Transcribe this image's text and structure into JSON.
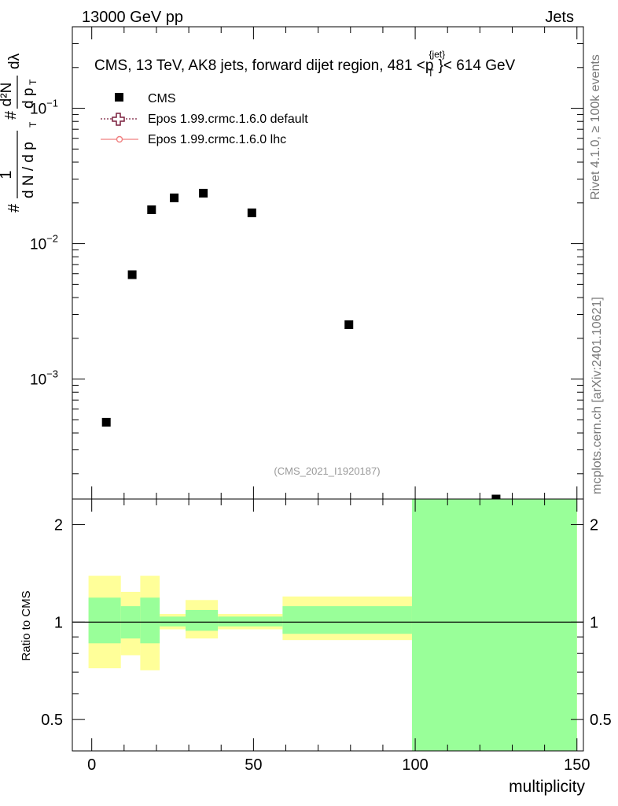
{
  "header": {
    "energy_label": "13000 GeV pp",
    "category_label": "Jets"
  },
  "side_labels": {
    "rivet": "Rivet 4.1.0, ≥ 100k events",
    "mcplots": "mcplots.cern.ch [arXiv:2401.10621]"
  },
  "chart_data": [
    {
      "type": "scatter",
      "title": "CMS, 13 TeV, AK8 jets, forward dijet region, 481 <p",
      "title_superscript": "{jet}",
      "title_subscript": "T",
      "title_tail": "}< 614 GeV",
      "analysis_id": "(CMS_2021_I1920187)",
      "ylabel": {
        "prefix": "#",
        "frac_numerator": "1",
        "frac_denominator": "d N / d p",
        "denominator_subscript": "T",
        "hash": "#",
        "second_numerator": "d²N",
        "second_denominator": "d p",
        "second_denominator_subscript": "T",
        "lambda": "dλ"
      },
      "yscale": "log",
      "ylim": [
        0.00013,
        0.4
      ],
      "xlim": [
        -6,
        152
      ],
      "ytick_labels": [
        {
          "value": 0.1,
          "base": "10",
          "exp": "−1"
        },
        {
          "value": 0.01,
          "base": "10",
          "exp": "−2"
        },
        {
          "value": 0.001,
          "base": "10",
          "exp": "−3"
        }
      ],
      "legend": [
        {
          "label": "CMS",
          "marker": "square",
          "color": "#000000"
        },
        {
          "label": "Epos 1.99.crmc.1.6.0 default",
          "marker": "open-cross",
          "line": "dotted",
          "color": "#7a1f3d"
        },
        {
          "label": "Epos 1.99.crmc.1.6.0 lhc",
          "marker": "circle",
          "line": "solid",
          "color": "#f08080"
        }
      ],
      "series": [
        {
          "name": "CMS",
          "x": [
            4.5,
            12.5,
            18.5,
            25.5,
            34.5,
            49.5,
            79.5,
            125
          ],
          "y": [
            0.00048,
            0.0059,
            0.0178,
            0.0218,
            0.0236,
            0.0169,
            0.00252,
            0.00013
          ]
        }
      ]
    },
    {
      "type": "area",
      "ylabel": "Ratio to CMS",
      "xlabel": "multiplicity",
      "yscale": "log",
      "ylim": [
        0.4,
        2.4
      ],
      "xlim": [
        -6,
        152
      ],
      "xticks": [
        0,
        50,
        100,
        150
      ],
      "xtick_labels": [
        "0",
        "50",
        "100",
        "150"
      ],
      "yticks": [
        0.5,
        1,
        2
      ],
      "ytick_labels": [
        "0.5",
        "1",
        "2"
      ],
      "reference_line": 1,
      "bands": [
        {
          "x0": -1,
          "x1": 9,
          "yellow": [
            0.72,
            1.39
          ],
          "green": [
            0.86,
            1.19
          ]
        },
        {
          "x0": 9,
          "x1": 15,
          "yellow": [
            0.79,
            1.24
          ],
          "green": [
            0.89,
            1.12
          ]
        },
        {
          "x0": 15,
          "x1": 21,
          "yellow": [
            0.71,
            1.39
          ],
          "green": [
            0.86,
            1.19
          ]
        },
        {
          "x0": 21,
          "x1": 29,
          "yellow": [
            0.95,
            1.06
          ],
          "green": [
            0.97,
            1.04
          ]
        },
        {
          "x0": 29,
          "x1": 39,
          "yellow": [
            0.89,
            1.17
          ],
          "green": [
            0.94,
            1.09
          ]
        },
        {
          "x0": 39,
          "x1": 59,
          "yellow": [
            0.95,
            1.06
          ],
          "green": [
            0.97,
            1.04
          ]
        },
        {
          "x0": 59,
          "x1": 99,
          "yellow": [
            0.88,
            1.2
          ],
          "green": [
            0.92,
            1.12
          ]
        },
        {
          "x0": 99,
          "x1": 150,
          "yellow": [
            0.4,
            2.4
          ],
          "green": [
            0.4,
            2.4
          ]
        }
      ]
    }
  ]
}
